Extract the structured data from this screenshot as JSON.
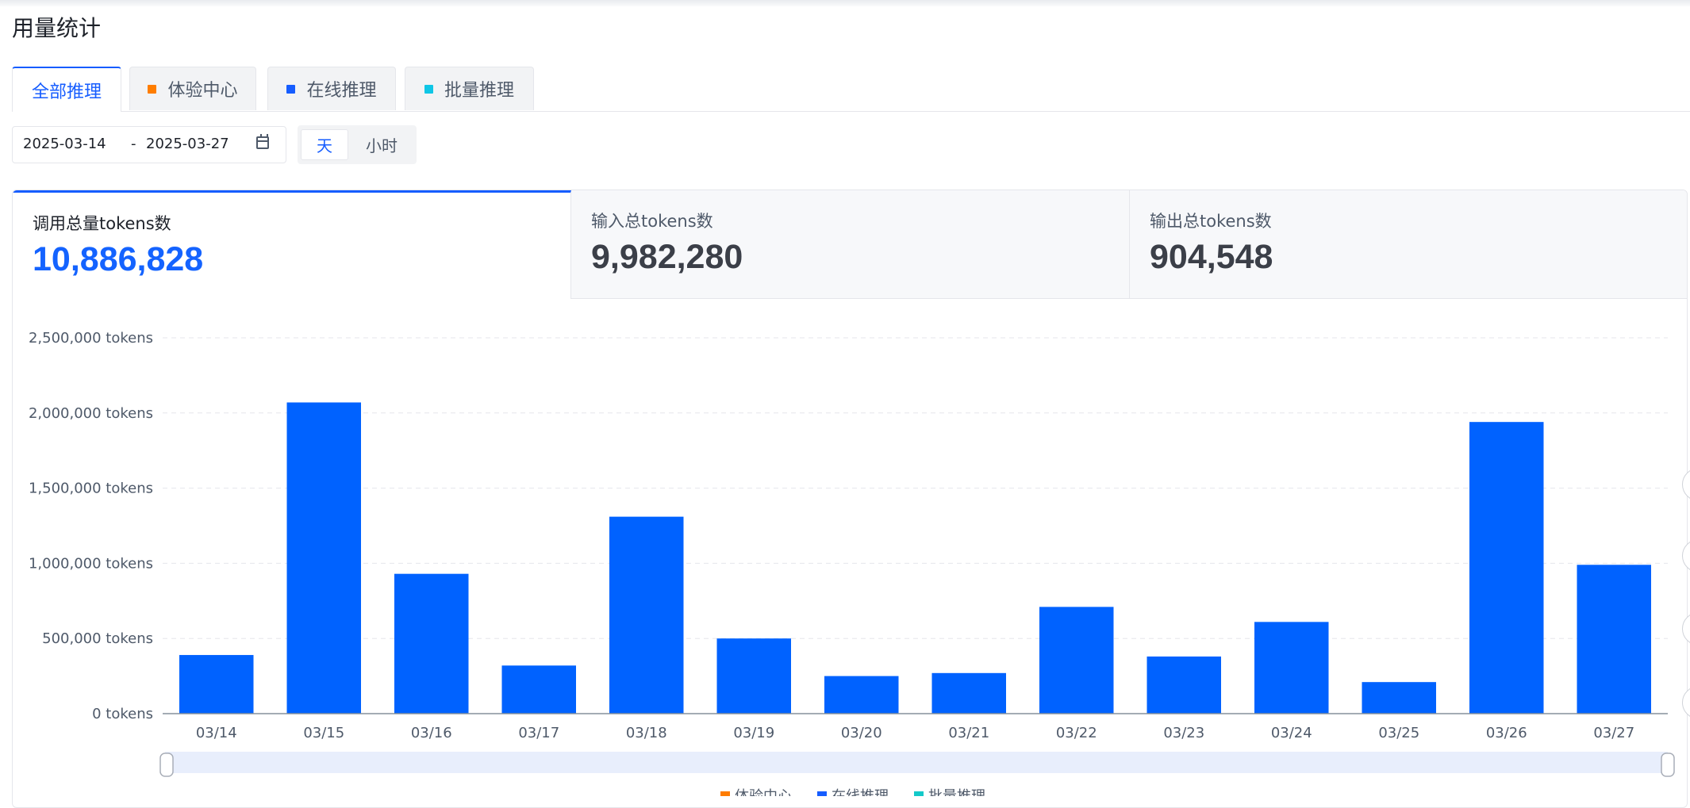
{
  "page": {
    "title": "用量统计"
  },
  "tabs": [
    {
      "label": "全部推理",
      "color": "",
      "active": true
    },
    {
      "label": "体验中心",
      "color": "#ff7d00",
      "active": false
    },
    {
      "label": "在线推理",
      "color": "#165dff",
      "active": false
    },
    {
      "label": "批量推理",
      "color": "#14c9c9",
      "active": false
    }
  ],
  "date_range": {
    "start": "2025-03-14",
    "separator": "-",
    "end": "2025-03-27"
  },
  "granularity": [
    {
      "label": "天",
      "active": true
    },
    {
      "label": "小时",
      "active": false
    }
  ],
  "metrics": [
    {
      "label": "调用总量tokens数",
      "value": "10,886,828",
      "active": true
    },
    {
      "label": "输入总tokens数",
      "value": "9,982,280",
      "active": false
    },
    {
      "label": "输出总tokens数",
      "value": "904,548",
      "active": false
    }
  ],
  "legend": [
    "体验中心",
    "在线推理",
    "批量推理"
  ],
  "colors": {
    "accent": "#165dff",
    "bar": "#0062ff"
  },
  "chart_data": {
    "type": "bar",
    "categories": [
      "03/14",
      "03/15",
      "03/16",
      "03/17",
      "03/18",
      "03/19",
      "03/20",
      "03/21",
      "03/22",
      "03/23",
      "03/24",
      "03/25",
      "03/26",
      "03/27"
    ],
    "values": [
      390000,
      2070000,
      930000,
      320000,
      1310000,
      500000,
      250000,
      270000,
      710000,
      380000,
      610000,
      210000,
      1940000,
      990000
    ],
    "y_ticks": [
      "0 tokens",
      "500,000 tokens",
      "1,000,000 tokens",
      "1,500,000 tokens",
      "2,000,000 tokens",
      "2,500,000 tokens"
    ],
    "ylim": [
      0,
      2500000
    ],
    "grid": true
  }
}
